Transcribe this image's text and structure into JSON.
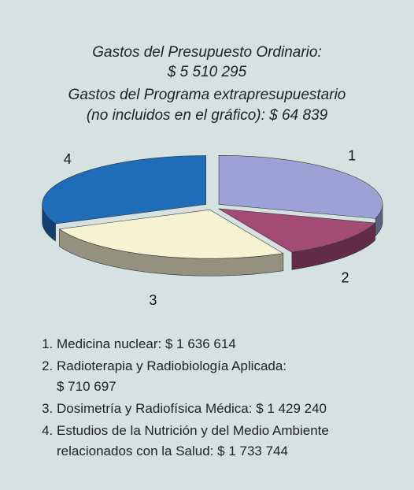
{
  "chart_data": {
    "type": "pie",
    "title": "Gastos del Presupuesto Ordinario:",
    "subtitle": "$ 5 510 295",
    "annotations": [
      "Gastos del Programa extrapresupuestario",
      "(no incluidos en el gráfico):  $ 64 839"
    ],
    "categories": [
      "Medicina nuclear:",
      "Radioterapia y Radiobiología Aplicada:",
      "Dosimetría y Radiofísica Médica: ",
      "Estudios de la Nutrición y del Medio Ambiente relacionados con la Salud:"
    ],
    "slice_labels": [
      "1",
      "2",
      "3",
      "4"
    ],
    "values": [
      1636614,
      710697,
      1429240,
      1733744
    ],
    "value_labels": [
      "$ 1 636 614",
      "$ 710 697",
      "$ 1 429 240",
      "$ 1 733 744"
    ],
    "colors": [
      "#9ba3d6",
      "#a34a75",
      "#f6f3d3",
      "#1f6db9"
    ]
  }
}
